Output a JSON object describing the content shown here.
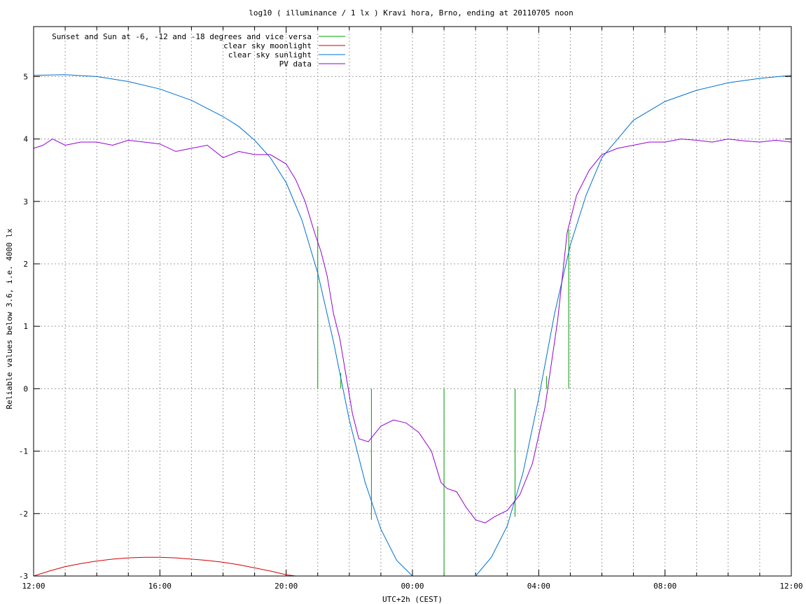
{
  "chart_data": {
    "type": "line",
    "title": "log10 ( illuminance / 1 lx ) Kravi hora, Brno, ending at 20110705 noon",
    "xlabel": "UTC+2h (CEST)",
    "ylabel": "Reliable values below 3.6, i.e. 4000 lx",
    "xlim": [
      0,
      24
    ],
    "ylim": [
      -3,
      5.8
    ],
    "grid": true,
    "legend_position": "top-left",
    "x_unit": "hours since 12:00 (UTC+2h)",
    "x_ticks": [
      {
        "x": 0,
        "label": "12:00"
      },
      {
        "x": 4,
        "label": "16:00"
      },
      {
        "x": 8,
        "label": "20:00"
      },
      {
        "x": 12,
        "label": "00:00"
      },
      {
        "x": 16,
        "label": "04:00"
      },
      {
        "x": 20,
        "label": "08:00"
      },
      {
        "x": 24,
        "label": "12:00"
      }
    ],
    "y_ticks": [
      {
        "y": 5,
        "label": "5"
      },
      {
        "y": 4,
        "label": "4"
      },
      {
        "y": 3,
        "label": "3"
      },
      {
        "y": 2,
        "label": "2"
      },
      {
        "y": 1,
        "label": "1"
      },
      {
        "y": 0,
        "label": "0"
      },
      {
        "y": -1,
        "label": "-1"
      },
      {
        "y": -2,
        "label": "-2"
      },
      {
        "y": -3,
        "label": "-3"
      }
    ],
    "series": [
      {
        "name": "Sunset and Sun at -6, -12 and -18 degrees and vice versa",
        "color": "#00a000",
        "style": "impulses",
        "points": [
          {
            "x": 9.0,
            "y0": 0,
            "y1": 2.6
          },
          {
            "x": 9.73,
            "y0": 0,
            "y1": 0.25
          },
          {
            "x": 10.7,
            "y0": -2.1,
            "y1": 0
          },
          {
            "x": 13.0,
            "y0": -3.0,
            "y1": 0
          },
          {
            "x": 15.25,
            "y0": -2.05,
            "y1": 0
          },
          {
            "x": 16.25,
            "y0": 0,
            "y1": 0.2
          },
          {
            "x": 16.95,
            "y0": 0,
            "y1": 2.55
          }
        ]
      },
      {
        "name": "clear sky moonlight",
        "color": "#d00000",
        "x": [
          0,
          0.5,
          1,
          1.5,
          2,
          2.5,
          3,
          3.5,
          4,
          4.5,
          5,
          5.5,
          6,
          6.5,
          7,
          7.5,
          8,
          8.3
        ],
        "y": [
          -3.0,
          -2.92,
          -2.85,
          -2.8,
          -2.76,
          -2.73,
          -2.71,
          -2.7,
          -2.7,
          -2.71,
          -2.73,
          -2.75,
          -2.78,
          -2.82,
          -2.87,
          -2.92,
          -2.98,
          -3.0
        ]
      },
      {
        "name": "clear sky sunlight",
        "color": "#0070d0",
        "x": [
          0,
          1,
          2,
          3,
          4,
          5,
          6,
          6.5,
          7,
          7.5,
          8,
          8.5,
          9,
          9.5,
          10,
          10.5,
          11,
          11.5,
          12,
          14,
          14.5,
          15,
          15.5,
          16,
          16.5,
          17,
          17.5,
          18,
          19,
          20,
          21,
          22,
          23,
          24
        ],
        "y": [
          5.02,
          5.03,
          5.0,
          4.92,
          4.8,
          4.62,
          4.36,
          4.2,
          3.98,
          3.7,
          3.3,
          2.7,
          1.85,
          0.75,
          -0.5,
          -1.5,
          -2.25,
          -2.75,
          -3.0,
          -3.0,
          -2.7,
          -2.2,
          -1.35,
          -0.15,
          1.2,
          2.3,
          3.1,
          3.7,
          4.3,
          4.6,
          4.78,
          4.9,
          4.97,
          5.02
        ]
      },
      {
        "name": "PV data",
        "color": "#9400d3",
        "x": [
          0,
          0.3,
          0.6,
          1,
          1.5,
          2,
          2.5,
          3,
          3.5,
          4,
          4.5,
          5,
          5.5,
          6,
          6.5,
          7,
          7.5,
          8,
          8.3,
          8.6,
          8.9,
          9.1,
          9.3,
          9.5,
          9.7,
          9.9,
          10.1,
          10.3,
          10.6,
          11,
          11.4,
          11.8,
          12.2,
          12.6,
          12.9,
          13.1,
          13.4,
          13.7,
          14.0,
          14.3,
          14.6,
          15.0,
          15.4,
          15.8,
          16.2,
          16.6,
          16.9,
          17.2,
          17.6,
          18.0,
          18.5,
          19,
          19.5,
          20,
          20.5,
          21,
          21.5,
          22,
          22.5,
          23,
          23.5,
          24
        ],
        "y": [
          3.85,
          3.9,
          4.0,
          3.9,
          3.95,
          3.95,
          3.9,
          3.98,
          3.95,
          3.92,
          3.8,
          3.85,
          3.9,
          3.7,
          3.8,
          3.75,
          3.75,
          3.6,
          3.35,
          3.0,
          2.5,
          2.2,
          1.8,
          1.2,
          0.8,
          0.2,
          -0.4,
          -0.8,
          -0.85,
          -0.6,
          -0.5,
          -0.55,
          -0.7,
          -1.0,
          -1.5,
          -1.6,
          -1.65,
          -1.9,
          -2.1,
          -2.15,
          -2.05,
          -1.95,
          -1.7,
          -1.2,
          -0.3,
          1.1,
          2.5,
          3.1,
          3.5,
          3.75,
          3.85,
          3.9,
          3.95,
          3.95,
          4.0,
          3.98,
          3.95,
          4.0,
          3.97,
          3.95,
          3.98,
          3.95
        ]
      }
    ]
  }
}
